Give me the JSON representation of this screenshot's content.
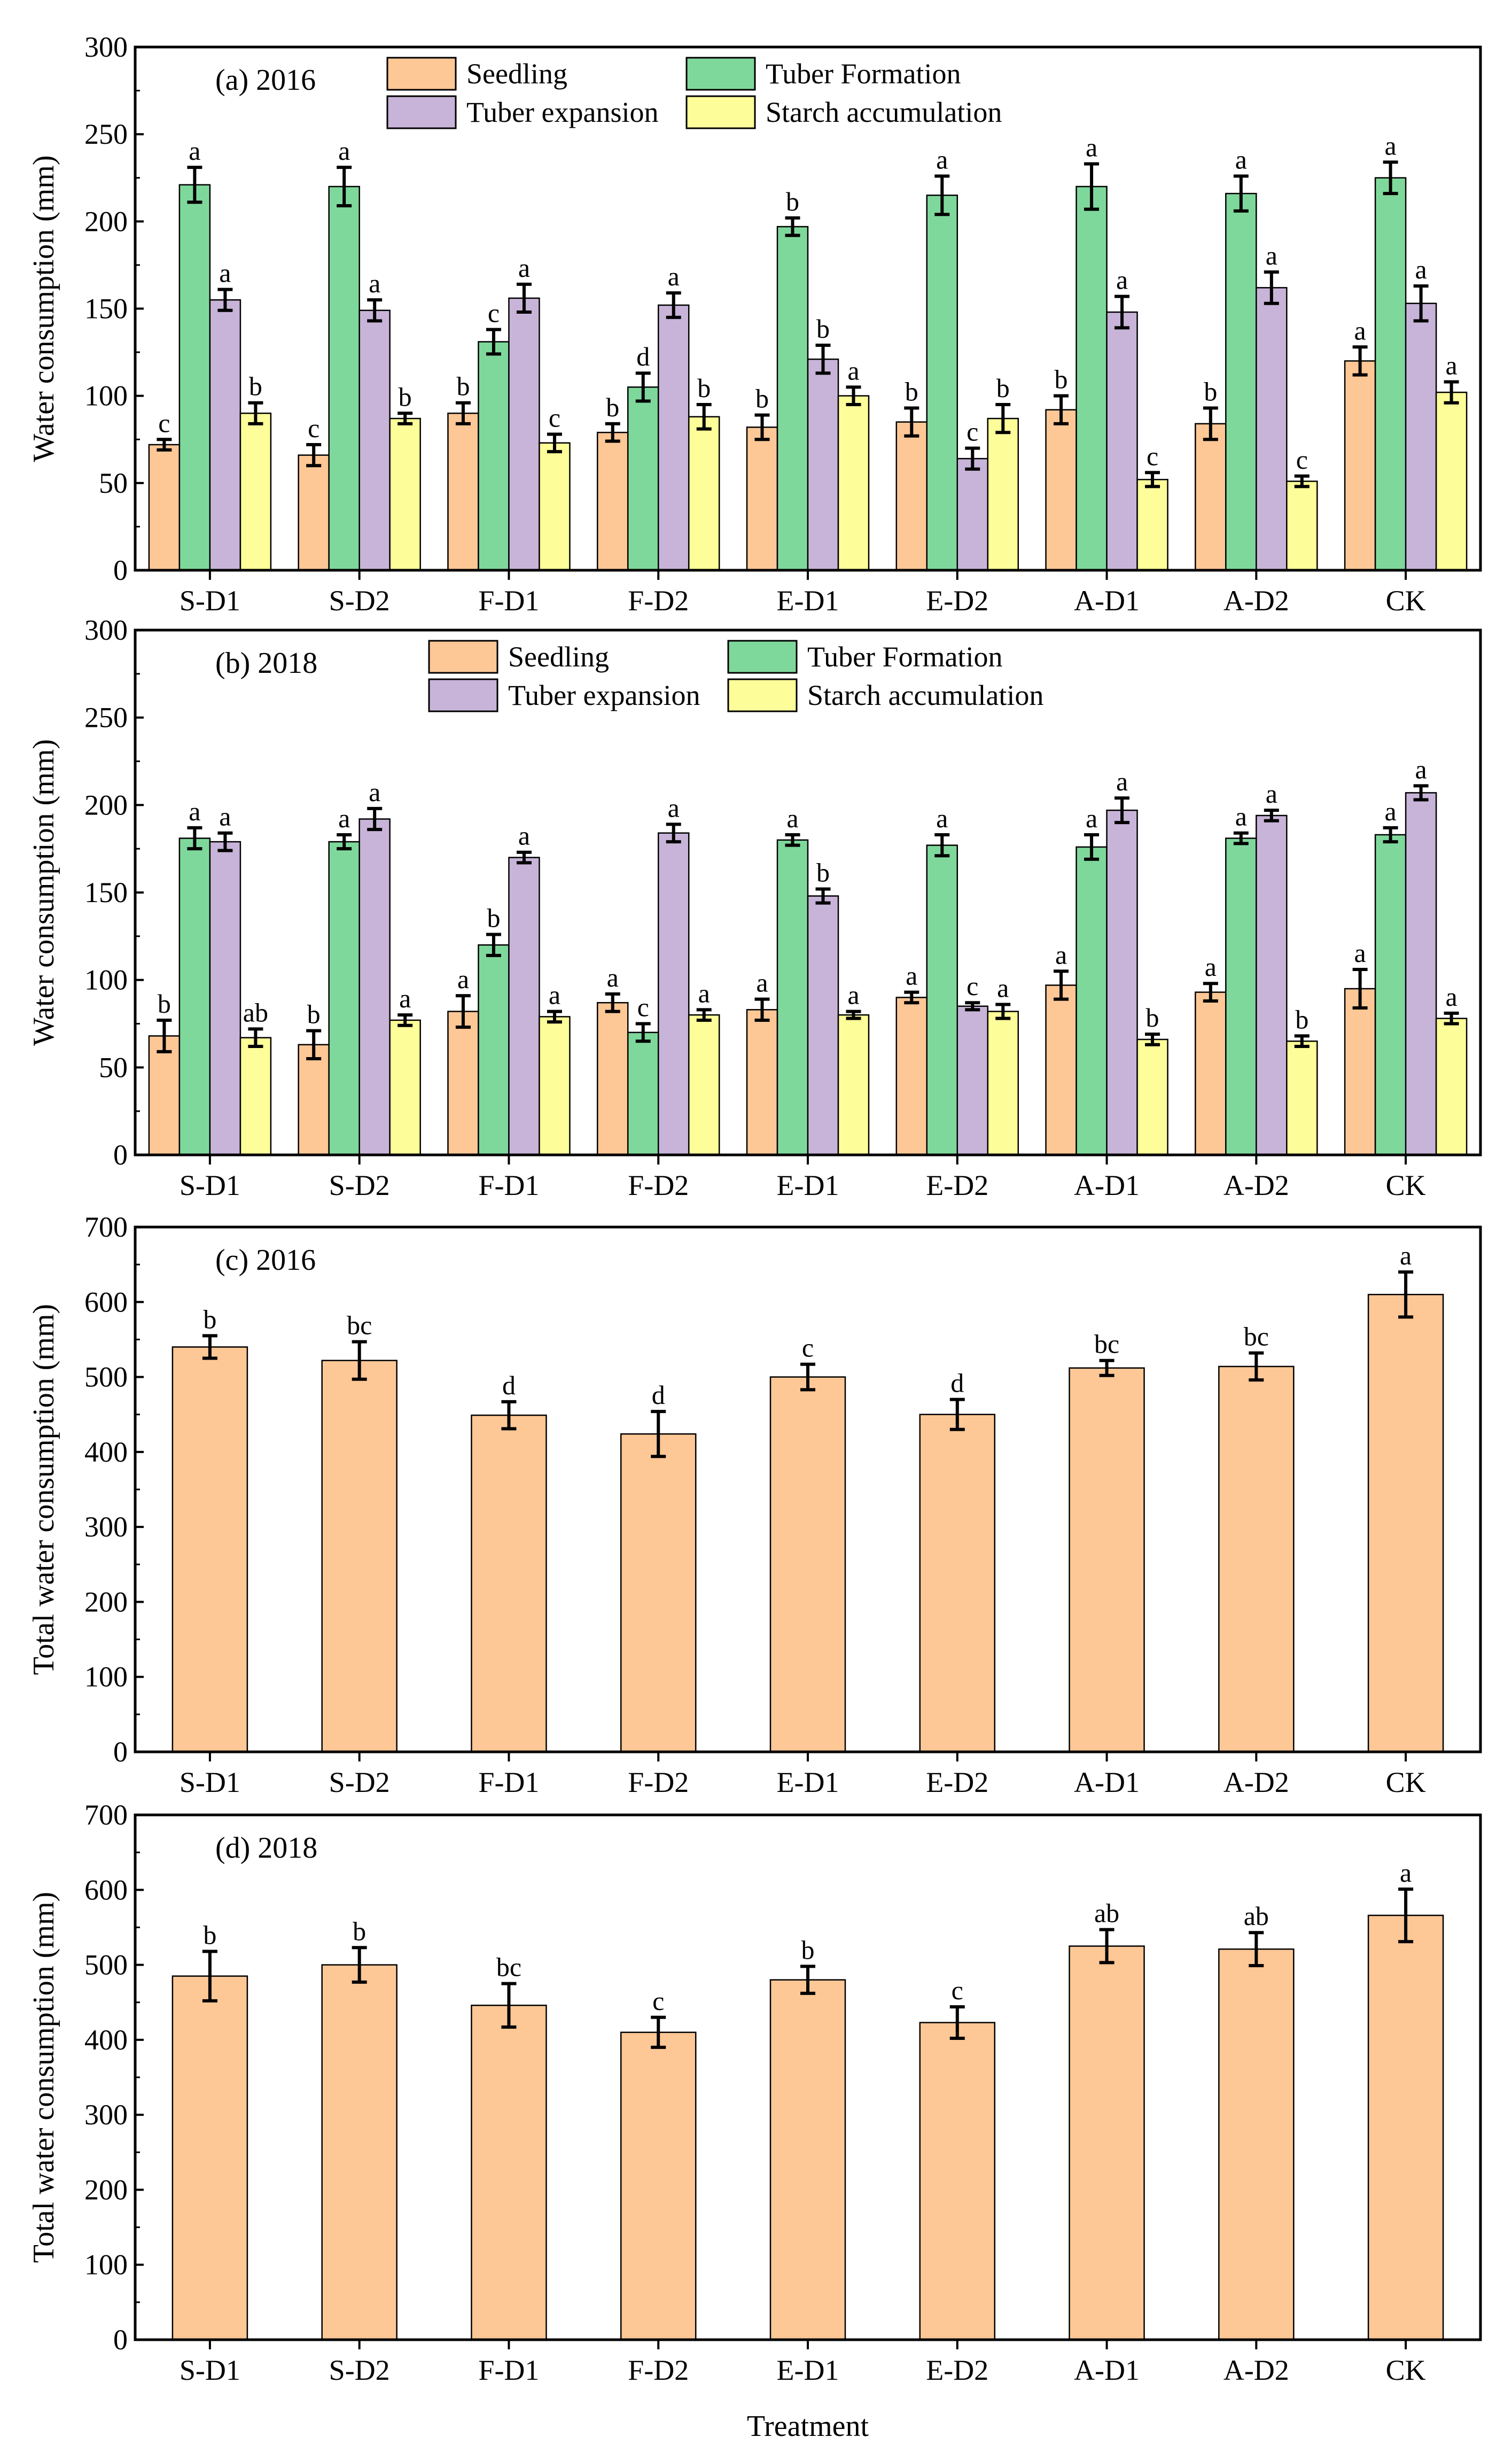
{
  "chart_data": [
    {
      "type": "bar",
      "title": "(a) 2016",
      "ylabel": "Water consumption (mm)",
      "ylim": [
        0,
        300
      ],
      "yticks": [
        0,
        50,
        100,
        150,
        200,
        250,
        300
      ],
      "categories": [
        "S-D1",
        "S-D2",
        "F-D1",
        "F-D2",
        "E-D1",
        "E-D2",
        "A-D1",
        "A-D2",
        "CK"
      ],
      "legend_position": "top",
      "series": [
        {
          "name": "Seedling",
          "color": "#FDC796",
          "values": [
            72,
            66,
            90,
            79,
            82,
            85,
            92,
            84,
            120
          ],
          "errors": [
            3,
            6,
            6,
            5,
            7,
            8,
            8,
            9,
            8
          ],
          "letters": [
            "c",
            "c",
            "b",
            "b",
            "b",
            "b",
            "b",
            "b",
            "a"
          ]
        },
        {
          "name": "Tuber Formation",
          "color": "#7FD89B",
          "values": [
            221,
            220,
            131,
            105,
            197,
            215,
            220,
            216,
            225
          ],
          "errors": [
            10,
            11,
            7,
            8,
            5,
            11,
            13,
            10,
            9
          ],
          "letters": [
            "a",
            "a",
            "c",
            "d",
            "b",
            "a",
            "a",
            "a",
            "a"
          ]
        },
        {
          "name": "Tuber expansion",
          "color": "#C8B4D8",
          "values": [
            155,
            149,
            156,
            152,
            121,
            64,
            148,
            162,
            153
          ],
          "errors": [
            6,
            6,
            8,
            7,
            8,
            6,
            9,
            9,
            10
          ],
          "letters": [
            "a",
            "a",
            "a",
            "a",
            "b",
            "c",
            "a",
            "a",
            "a"
          ]
        },
        {
          "name": "Starch accumulation",
          "color": "#FDFD99",
          "values": [
            90,
            87,
            73,
            88,
            100,
            87,
            52,
            51,
            102
          ],
          "errors": [
            6,
            3,
            5,
            7,
            5,
            8,
            4,
            3,
            6
          ],
          "letters": [
            "b",
            "b",
            "c",
            "b",
            "a",
            "b",
            "c",
            "c",
            "a"
          ]
        }
      ]
    },
    {
      "type": "bar",
      "title": "(b) 2018",
      "ylabel": "Water consumption (mm)",
      "ylim": [
        0,
        300
      ],
      "yticks": [
        0,
        50,
        100,
        150,
        200,
        250,
        300
      ],
      "categories": [
        "S-D1",
        "S-D2",
        "F-D1",
        "F-D2",
        "E-D1",
        "E-D2",
        "A-D1",
        "A-D2",
        "CK"
      ],
      "legend_position": "top",
      "series": [
        {
          "name": "Seedling",
          "color": "#FDC796",
          "values": [
            68,
            63,
            82,
            87,
            83,
            90,
            97,
            93,
            95
          ],
          "errors": [
            9,
            8,
            9,
            5,
            6,
            3,
            8,
            5,
            11
          ],
          "letters": [
            "b",
            "b",
            "a",
            "a",
            "a",
            "a",
            "a",
            "a",
            "a"
          ]
        },
        {
          "name": "Tuber Formation",
          "color": "#7FD89B",
          "values": [
            181,
            179,
            120,
            70,
            180,
            177,
            176,
            181,
            183
          ],
          "errors": [
            6,
            4,
            6,
            5,
            3,
            6,
            7,
            3,
            4
          ],
          "letters": [
            "a",
            "a",
            "b",
            "c",
            "a",
            "a",
            "a",
            "a",
            "a"
          ]
        },
        {
          "name": "Tuber expansion",
          "color": "#C8B4D8",
          "values": [
            179,
            192,
            170,
            184,
            148,
            85,
            197,
            194,
            207
          ],
          "errors": [
            5,
            6,
            3,
            5,
            4,
            2,
            7,
            3,
            4
          ],
          "letters": [
            "a",
            "a",
            "a",
            "a",
            "b",
            "c",
            "a",
            "a",
            "a"
          ]
        },
        {
          "name": "Starch accumulation",
          "color": "#FDFD99",
          "values": [
            67,
            77,
            79,
            80,
            80,
            82,
            66,
            65,
            78
          ],
          "errors": [
            5,
            3,
            3,
            3,
            2,
            4,
            3,
            3,
            3
          ],
          "letters": [
            "ab",
            "a",
            "a",
            "a",
            "a",
            "a",
            "b",
            "b",
            "a"
          ]
        }
      ]
    },
    {
      "type": "bar",
      "title": "(c) 2016",
      "ylabel": "Total water consumption (mm)",
      "ylim": [
        0,
        700
      ],
      "yticks": [
        0,
        100,
        200,
        300,
        400,
        500,
        600,
        700
      ],
      "categories": [
        "S-D1",
        "S-D2",
        "F-D1",
        "F-D2",
        "E-D1",
        "E-D2",
        "A-D1",
        "A-D2",
        "CK"
      ],
      "series": [
        {
          "name": "Total",
          "color": "#FDC796",
          "values": [
            540,
            522,
            449,
            424,
            500,
            450,
            512,
            514,
            610
          ],
          "errors": [
            15,
            25,
            18,
            30,
            17,
            20,
            10,
            18,
            30
          ],
          "letters": [
            "b",
            "bc",
            "d",
            "d",
            "c",
            "d",
            "bc",
            "bc",
            "a"
          ]
        }
      ]
    },
    {
      "type": "bar",
      "title": "(d) 2018",
      "ylabel": "Total water consumption (mm)",
      "xlabel": "Treatment",
      "ylim": [
        0,
        700
      ],
      "yticks": [
        0,
        100,
        200,
        300,
        400,
        500,
        600,
        700
      ],
      "categories": [
        "S-D1",
        "S-D2",
        "F-D1",
        "F-D2",
        "E-D1",
        "E-D2",
        "A-D1",
        "A-D2",
        "CK"
      ],
      "series": [
        {
          "name": "Total",
          "color": "#FDC796",
          "values": [
            485,
            500,
            446,
            410,
            480,
            423,
            525,
            521,
            566
          ],
          "errors": [
            33,
            23,
            29,
            20,
            18,
            21,
            22,
            22,
            35
          ],
          "letters": [
            "b",
            "b",
            "bc",
            "c",
            "b",
            "c",
            "ab",
            "ab",
            "a"
          ]
        }
      ]
    }
  ]
}
